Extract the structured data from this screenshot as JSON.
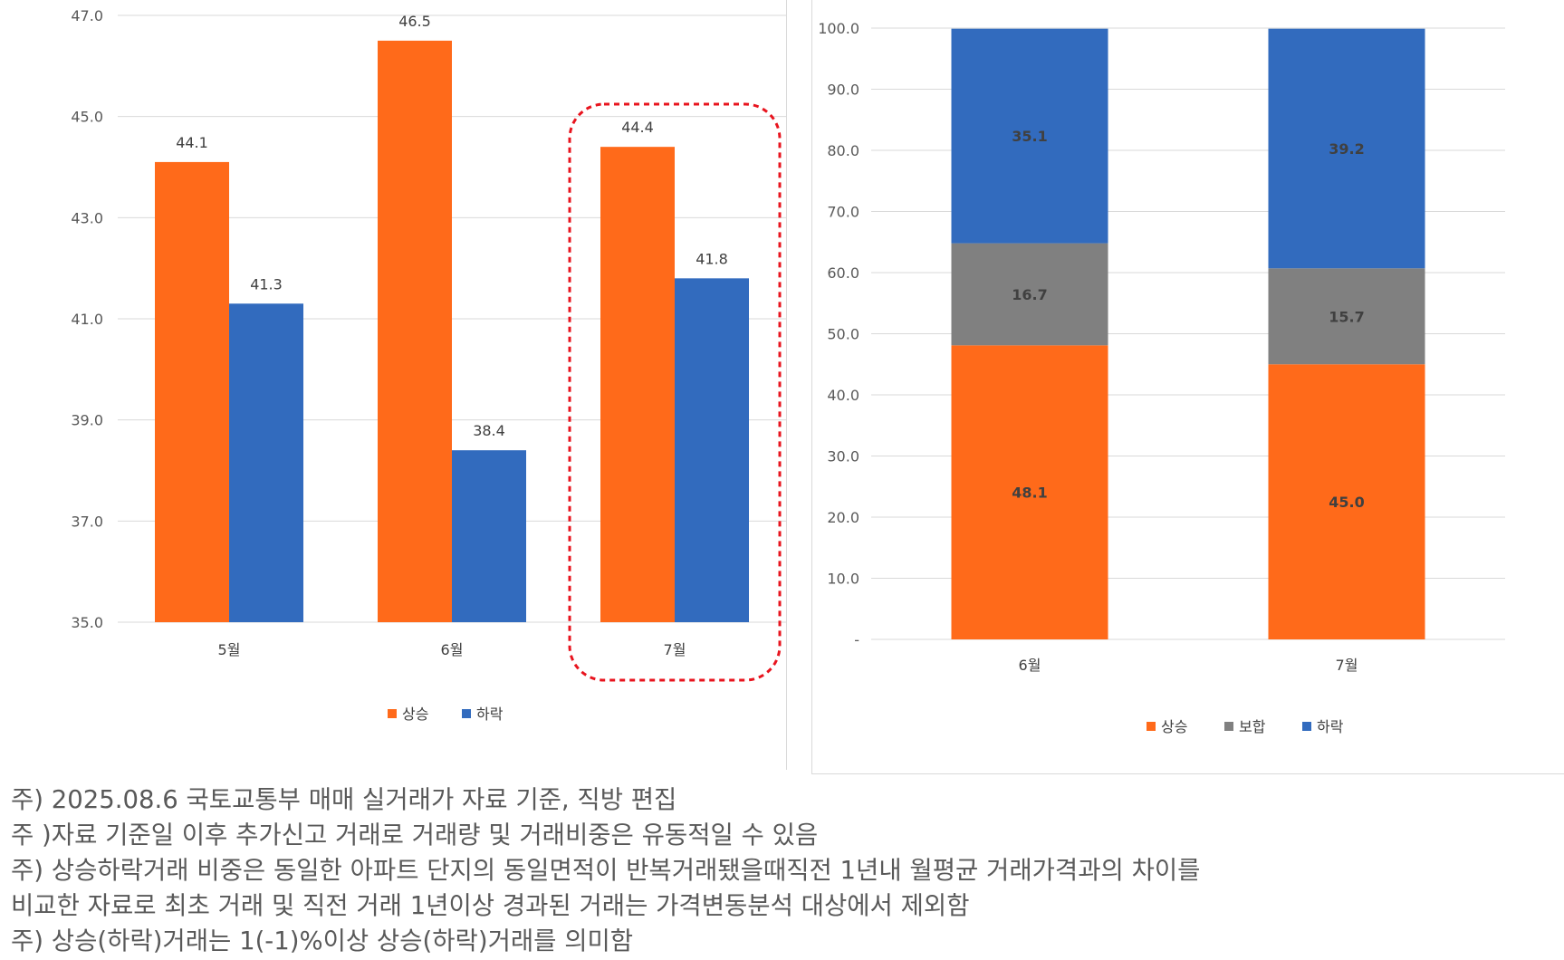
{
  "left_chart": {
    "chart_data": {
      "type": "bar",
      "categories": [
        "5월",
        "6월",
        "7월"
      ],
      "series": [
        {
          "name": "상승",
          "values": [
            44.1,
            46.5,
            44.4
          ],
          "color": "#FF6A1A"
        },
        {
          "name": "하락",
          "values": [
            41.3,
            38.4,
            41.8
          ],
          "color": "#326BBE"
        }
      ],
      "value_labels": [
        [
          "44.1",
          "46.5",
          "44.4"
        ],
        [
          "41.3",
          "38.4",
          "41.8"
        ]
      ],
      "y_ticks": [
        "47.0",
        "45.0",
        "43.0",
        "41.0",
        "39.0",
        "37.0",
        "35.0"
      ],
      "ylim": [
        35,
        47
      ],
      "grid": true,
      "legend_placement": "bottom",
      "highlight_category": "7월",
      "highlight_color": "#E8141E"
    }
  },
  "right_chart": {
    "chart_data": {
      "type": "bar",
      "stacked": true,
      "categories": [
        "6월",
        "7월"
      ],
      "series": [
        {
          "name": "상승",
          "values": [
            48.1,
            45.0
          ],
          "color": "#FF6A1A"
        },
        {
          "name": "보합",
          "values": [
            16.7,
            15.7
          ],
          "color": "#808080"
        },
        {
          "name": "하락",
          "values": [
            35.1,
            39.2
          ],
          "color": "#326BBE"
        }
      ],
      "value_labels": [
        [
          "48.1",
          "45.0"
        ],
        [
          "16.7",
          "15.7"
        ],
        [
          "35.1",
          "39.2"
        ]
      ],
      "y_ticks": [
        "100.0",
        "90.0",
        "80.0",
        "70.0",
        "60.0",
        "50.0",
        "40.0",
        "30.0",
        "20.0",
        "10.0",
        "-"
      ],
      "ylim": [
        0,
        100
      ],
      "grid": true,
      "legend_placement": "bottom"
    }
  },
  "notes": [
    "주) 2025.08.6 국토교통부 매매 실거래가 자료 기준, 직방 편집",
    "주 )자료 기준일 이후 추가신고 거래로 거래량 및 거래비중은 유동적일 수 있음",
    "주) 상승하락거래 비중은 동일한 아파트 단지의 동일면적이 반복거래됐을때직전 1년내 월평균 거래가격과의 차이를",
    "비교한 자료로 최초 거래 및 직전 거래 1년이상 경과된 거래는 가격변동분석 대상에서 제외함",
    "주) 상승(하락)거래는 1(-1)%이상 상승(하락)거래를 의미함"
  ]
}
